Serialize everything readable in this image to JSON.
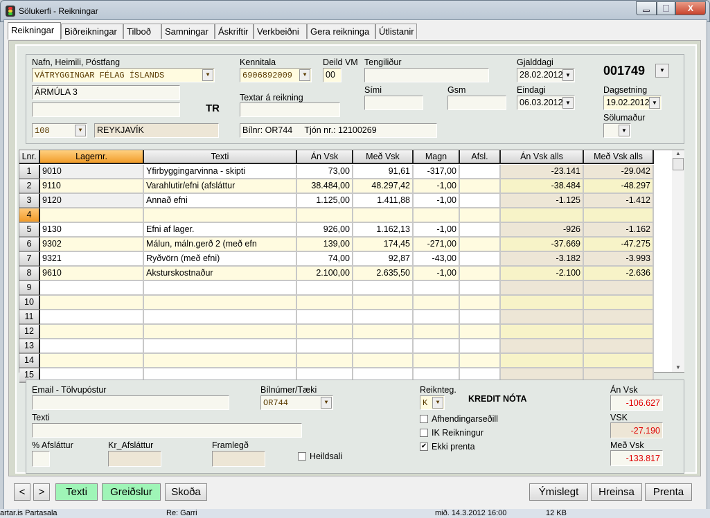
{
  "window": {
    "title": "Sölukerfi - Reikningar",
    "minimize": "minimize",
    "maximize": "maximize",
    "close": "X"
  },
  "tabs": [
    "Reikningar",
    "Biðreikningar",
    "Tilboð",
    "Samningar",
    "Áskriftir",
    "Verkbeiðni",
    "Gera reikninga",
    "Útlistanir"
  ],
  "header": {
    "name_label": "Nafn, Heimili, Póstfang",
    "name": "VÁTRYGGINGAR FÉLAG ÍSLANDS",
    "address": "ÁRMÚLA 3",
    "address2": "",
    "postcode": "108",
    "city": "REYKJAVÍK",
    "tr": "TR",
    "kennitala_label": "Kennitala",
    "kennitala": "6906892009",
    "deild_label": "Deild VM",
    "deild": "00",
    "tengilidur_label": "Tengiliður",
    "tengilidur": "",
    "textar_label": "Textar á reikning",
    "textar": "",
    "simi_label": "Sími",
    "simi": "",
    "gsm_label": "Gsm",
    "gsm": "",
    "bilnr_info": "Bílnr: OR744     Tjón nr.: 12100269",
    "gjalddagi_label": "Gjalddagi",
    "gjalddagi": "28.02.2012",
    "eindagi_label": "Eindagi",
    "eindagi": "06.03.2012",
    "invoice_no": "001749",
    "dagsetning_label": "Dagsetning",
    "dagsetning": "19.02.2012",
    "solumadur_label": "Sölumaður",
    "solumadur": ""
  },
  "grid": {
    "columns": [
      "Lnr.",
      "Lagernr.",
      "Texti",
      "Án Vsk",
      "Með Vsk",
      "Magn",
      "Afsl.",
      "Án Vsk alls",
      "Með Vsk alls"
    ],
    "rows": [
      [
        "1",
        "9010",
        "Yfirbyggingarvinna - skipti",
        "73,00",
        "91,61",
        "-317,00",
        "",
        "-23.141",
        "-29.042"
      ],
      [
        "2",
        "9110",
        "Varahlutir/efni (afsláttur",
        "38.484,00",
        "48.297,42",
        "-1,00",
        "",
        "-38.484",
        "-48.297"
      ],
      [
        "3",
        "9120",
        "Annað efni",
        "1.125,00",
        "1.411,88",
        "-1,00",
        "",
        "-1.125",
        "-1.412"
      ],
      [
        "4",
        "",
        "",
        "",
        "",
        "",
        "",
        "",
        ""
      ],
      [
        "5",
        "9130",
        "Efni af lager.",
        "926,00",
        "1.162,13",
        "-1,00",
        "",
        "-926",
        "-1.162"
      ],
      [
        "6",
        "9302",
        "Málun, máln.gerð 2 (með efn",
        "139,00",
        "174,45",
        "-271,00",
        "",
        "-37.669",
        "-47.275"
      ],
      [
        "7",
        "9321",
        "Ryðvörn (með efni)",
        "74,00",
        "92,87",
        "-43,00",
        "",
        "-3.182",
        "-3.993"
      ],
      [
        "8",
        "9610",
        "Aksturskostnaður",
        "2.100,00",
        "2.635,50",
        "-1,00",
        "",
        "-2.100",
        "-2.636"
      ],
      [
        "9",
        "",
        "",
        "",
        "",
        "",
        "",
        "",
        ""
      ],
      [
        "10",
        "",
        "",
        "",
        "",
        "",
        "",
        "",
        ""
      ],
      [
        "11",
        "",
        "",
        "",
        "",
        "",
        "",
        "",
        ""
      ],
      [
        "12",
        "",
        "",
        "",
        "",
        "",
        "",
        "",
        ""
      ],
      [
        "13",
        "",
        "",
        "",
        "",
        "",
        "",
        "",
        ""
      ],
      [
        "14",
        "",
        "",
        "",
        "",
        "",
        "",
        "",
        ""
      ],
      [
        "15",
        "",
        "",
        "",
        "",
        "",
        "",
        "",
        ""
      ]
    ],
    "current_row": "4",
    "selected_column": "Lagernr."
  },
  "footer": {
    "email_label": "Email - Tölvupóstur",
    "email": "",
    "bilnumer_label": "Bílnúmer/Tæki",
    "bilnumer": "OR744",
    "texti_label": "Texti",
    "texti": "",
    "afslattur_pct_label": "% Afsláttur",
    "afslattur_pct": "",
    "kr_afslattur_label": "Kr_Afsláttur",
    "kr_afslattur": "",
    "framlegd_label": "Framlegð",
    "framlegd": "",
    "heildsali_label": "Heildsali",
    "heildsali": false,
    "reiknteg_label": "Reiknteg.",
    "reiknteg": "K",
    "kredit": "KREDIT NÓTA",
    "afhending_label": "Afhendingarseðill",
    "afhending": false,
    "ik_label": "IK Reikningur",
    "ik": false,
    "ekki_prenta_label": "Ekki prenta",
    "ekki_prenta": true,
    "an_vsk_label": "Án Vsk",
    "an_vsk": "-106.627",
    "vsk_label": "VSK",
    "vsk": "-27.190",
    "med_vsk_label": "Með Vsk",
    "med_vsk": "-133.817"
  },
  "buttons": {
    "prev": "<",
    "next": ">",
    "texti": "Texti",
    "greidslur": "Greiðslur",
    "skoda": "Skoða",
    "ymislegt": "Ýmislegt",
    "hreinsa": "Hreinsa",
    "prenta": "Prenta"
  },
  "background_status": [
    "artar.is Partasala",
    "Re: Garri",
    "mið. 14.3.2012 16:00",
    "12 KB"
  ],
  "colors": {
    "accent_orange": "#f19c2a",
    "green_button": "#9ff5b7",
    "negative_total": "#e00000",
    "row_yellow": "#fffbe0"
  }
}
